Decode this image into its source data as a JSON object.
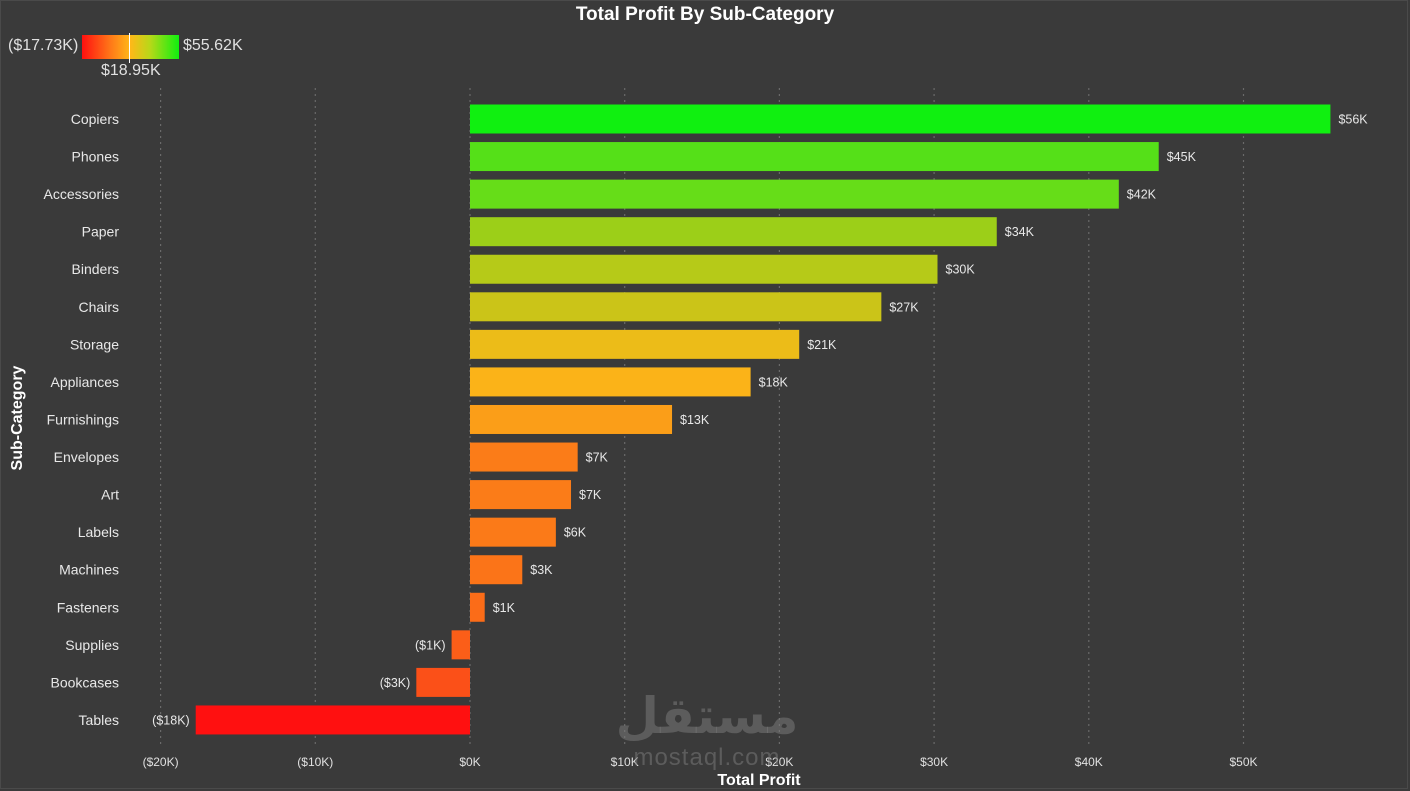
{
  "chart_data": {
    "type": "bar",
    "orientation": "horizontal",
    "title": "Total Profit By Sub-Category",
    "xlabel": "Total Profit",
    "ylabel": "Sub-Category",
    "categories": [
      "Copiers",
      "Phones",
      "Accessories",
      "Paper",
      "Binders",
      "Chairs",
      "Storage",
      "Appliances",
      "Furnishings",
      "Envelopes",
      "Art",
      "Labels",
      "Machines",
      "Fasteners",
      "Supplies",
      "Bookcases",
      "Tables"
    ],
    "values": [
      55.62,
      44.52,
      41.94,
      34.05,
      30.22,
      26.59,
      21.28,
      18.14,
      13.06,
      6.96,
      6.53,
      5.55,
      3.38,
      0.95,
      -1.19,
      -3.47,
      -17.73
    ],
    "data_labels": [
      "$56K",
      "$45K",
      "$42K",
      "$34K",
      "$30K",
      "$27K",
      "$21K",
      "$18K",
      "$13K",
      "$7K",
      "$7K",
      "$6K",
      "$3K",
      "$1K",
      "($1K)",
      "($3K)",
      "($18K)"
    ],
    "bar_colors": [
      "#10f010",
      "#55e018",
      "#66dd18",
      "#9ccf18",
      "#b6ca18",
      "#cbc418",
      "#ecbc18",
      "#fbb318",
      "#fb9e18",
      "#fb7c18",
      "#fb7c18",
      "#fb7a18",
      "#fb7418",
      "#fb6c18",
      "#fb5e18",
      "#fb5018",
      "#ff1010"
    ],
    "x_ticks": [
      -20,
      -10,
      0,
      10,
      20,
      30,
      40,
      50
    ],
    "x_tick_labels": [
      "($20K)",
      "($10K)",
      "$0K",
      "$10K",
      "$20K",
      "$30K",
      "$40K",
      "$50K"
    ],
    "xlim": [
      -20,
      55.62
    ],
    "units": "thousands USD",
    "grid": "vertical dotted",
    "legend": {
      "type": "color-gradient",
      "placement": "top-left",
      "min_label": "($17.73K)",
      "max_label": "$55.62K",
      "mid_label": "$18.95K",
      "colors": [
        "#ff1010",
        "#ff7a18",
        "#ffb818",
        "#b8d818",
        "#10f010"
      ]
    }
  },
  "colors": {
    "background": "#3a3a3a",
    "gridline": "#6a6a6a",
    "text": "#e8e8e8"
  },
  "watermark": {
    "arabic": "مستقل",
    "latin": "mostaql.com"
  }
}
